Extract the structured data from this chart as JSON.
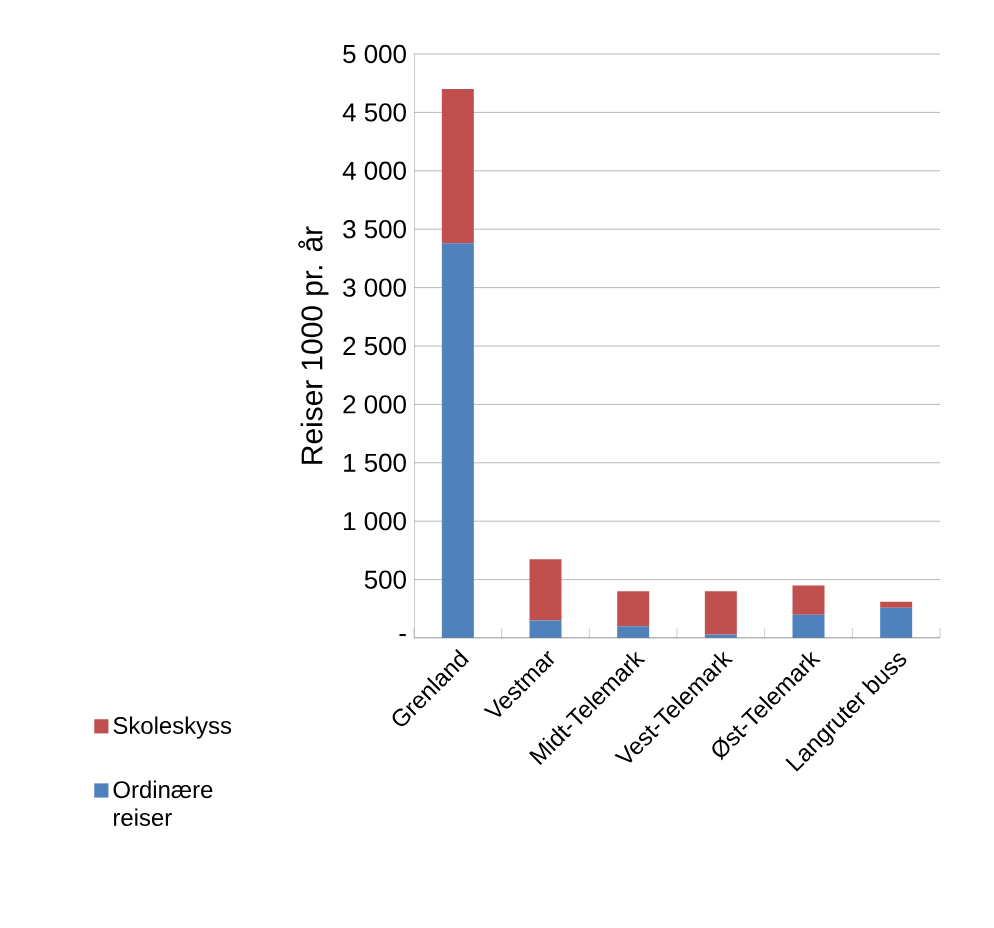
{
  "chart_data": {
    "type": "bar",
    "stacked": true,
    "ylabel": "Reiser 1000 pr. år",
    "categories": [
      "Grenland",
      "Vestmar",
      "Midt-Telemark",
      "Vest-Telemark",
      "Øst-Telemark",
      "Langruter buss"
    ],
    "series": [
      {
        "name": "Ordinære reiser",
        "color": "#4f81bd",
        "values": [
          3380,
          150,
          100,
          30,
          200,
          260
        ]
      },
      {
        "name": "Skoleskyss",
        "color": "#c0504d",
        "values": [
          1320,
          525,
          300,
          370,
          250,
          50
        ]
      }
    ],
    "ylim": [
      0,
      5000
    ],
    "yticks": [
      {
        "value": 0,
        "label": "-"
      },
      {
        "value": 500,
        "label": "500"
      },
      {
        "value": 1000,
        "label": "1 000"
      },
      {
        "value": 1500,
        "label": "1 500"
      },
      {
        "value": 2000,
        "label": "2 000"
      },
      {
        "value": 2500,
        "label": "2 500"
      },
      {
        "value": 3000,
        "label": "3 000"
      },
      {
        "value": 3500,
        "label": "3 500"
      },
      {
        "value": 4000,
        "label": "4 000"
      },
      {
        "value": 4500,
        "label": "4 500"
      },
      {
        "value": 5000,
        "label": "5 000"
      }
    ],
    "grid": "y",
    "legend": "bottom left"
  }
}
